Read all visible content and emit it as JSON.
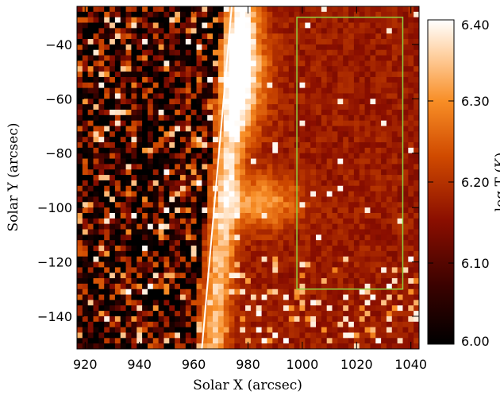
{
  "chart_data": {
    "type": "heatmap",
    "xlabel": "Solar X (arcsec)",
    "ylabel": "Solar Y (arcsec)",
    "xlim": [
      917,
      1043
    ],
    "ylim": [
      -152,
      -26
    ],
    "xticks": [
      920,
      940,
      960,
      980,
      1000,
      1020,
      1040
    ],
    "xtick_labels": [
      "920",
      "940",
      "960",
      "980",
      "1000",
      "1020",
      "1040"
    ],
    "yticks": [
      -40,
      -60,
      -80,
      -100,
      -120,
      -140
    ],
    "ytick_labels": [
      "−40",
      "−60",
      "−80",
      "−100",
      "−120",
      "−140"
    ],
    "colorbar": {
      "range": [
        6.0,
        6.4
      ],
      "ticks": [
        6.0,
        6.1,
        6.2,
        6.3,
        6.4
      ],
      "tick_labels": [
        "6.00",
        "6.10",
        "6.20",
        "6.30",
        "6.40"
      ],
      "label": "log T (K)",
      "colormap": "red-temperature"
    },
    "limb_line": {
      "x": [
        963,
        974
      ],
      "y": [
        -152,
        -26
      ]
    },
    "roi_box": {
      "x": [
        998,
        1037
      ],
      "y": [
        -130,
        -30
      ]
    },
    "features": [
      {
        "name": "limb-bright-band",
        "x_center": 972,
        "y_range": [
          -152,
          -26
        ],
        "value": 6.33
      },
      {
        "name": "hot-loop-upper",
        "x_center": 978,
        "y_center": -50,
        "value": 6.38
      },
      {
        "name": "hot-loop-lower",
        "x_center": 985,
        "y_center": -98,
        "value": 6.31
      },
      {
        "name": "off-limb-background",
        "x_range": [
          985,
          1043
        ],
        "value": 6.17
      },
      {
        "name": "disk-background",
        "x_range": [
          917,
          965
        ],
        "value": 6.08
      }
    ],
    "colors": {
      "roi_box": "#8fd13f",
      "limb_line": "#ffffff",
      "background": "#ffffff"
    }
  }
}
